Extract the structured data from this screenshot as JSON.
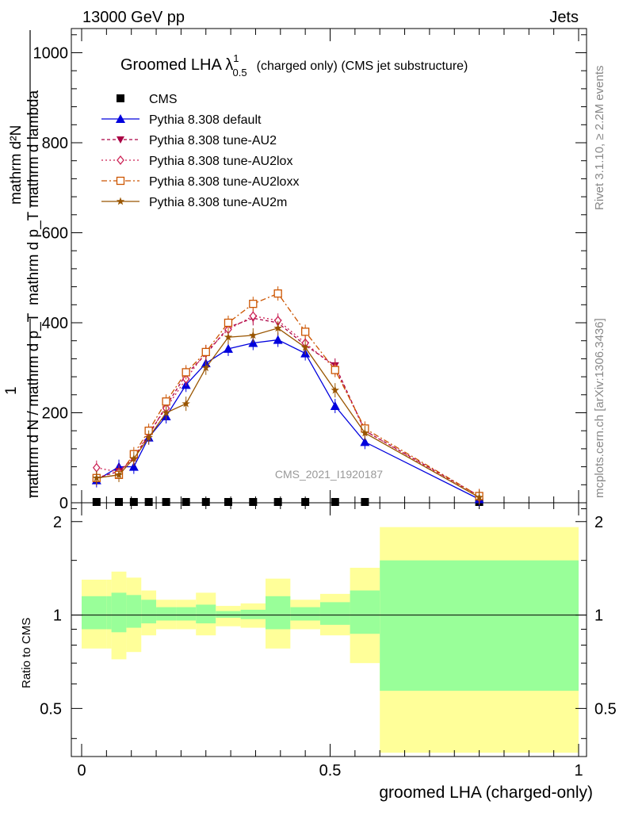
{
  "header": {
    "left": "13000 GeV pp",
    "right": "Jets"
  },
  "side_labels": {
    "rivet": "Rivet 3.1.10, ≥ 2.2M events",
    "mcplots": "mcplots.cern.ch [arXiv:1306.3436]"
  },
  "watermark": "CMS_2021_I1920187",
  "colors": {
    "band_outer": "#ffff99",
    "band_inner": "#99ff99",
    "default": "#0000dd",
    "au2": "#aa0044",
    "au2lox": "#cc2255",
    "au2loxx": "#cc5500",
    "au2m": "#995500"
  },
  "chart_data": [
    {
      "type": "line",
      "title": "Groomed LHA λ",
      "title_sup": "1",
      "title_sub": "0.5",
      "title_rest": "(charged only) (CMS jet substructure)",
      "xlabel": "groomed LHA (charged-only)",
      "ylabel_top": "mathrm d²N",
      "ylabel_top_alt": "mathrm d p_T mathrm d lambda",
      "ylabel_one": "1",
      "ylabel_bottom": "mathrm d N / mathrm d p_T",
      "xlim": [
        -0.02,
        1.0
      ],
      "ylim": [
        0,
        1060
      ],
      "yticks": [
        "0",
        "200",
        "400",
        "600",
        "800",
        "1000"
      ],
      "x": [
        0.03,
        0.075,
        0.105,
        0.135,
        0.17,
        0.21,
        0.25,
        0.295,
        0.345,
        0.395,
        0.45,
        0.51,
        0.57,
        0.8
      ],
      "series": [
        {
          "name": "CMS",
          "key": "cms",
          "marker": "square",
          "values": [
            0,
            0,
            0,
            0,
            0,
            0,
            0,
            0,
            0,
            0,
            0,
            0,
            0,
            0
          ]
        },
        {
          "name": "Pythia 8.308 default",
          "key": "default",
          "marker": "triangle",
          "values": [
            50,
            80,
            80,
            145,
            192,
            262,
            310,
            342,
            355,
            362,
            332,
            215,
            135,
            8
          ]
        },
        {
          "name": "Pythia 8.308 tune-AU2",
          "key": "au2",
          "marker": "triangle-down",
          "values": [
            55,
            70,
            100,
            150,
            215,
            285,
            330,
            390,
            410,
            400,
            350,
            305,
            160,
            15
          ]
        },
        {
          "name": "Pythia 8.308 tune-AU2lox",
          "key": "au2lox",
          "marker": "diamond",
          "values": [
            78,
            68,
            100,
            155,
            210,
            275,
            335,
            385,
            415,
            405,
            355,
            300,
            160,
            12
          ]
        },
        {
          "name": "Pythia 8.308 tune-AU2loxx",
          "key": "au2loxx",
          "marker": "open-square",
          "values": [
            55,
            62,
            108,
            160,
            225,
            290,
            335,
            400,
            442,
            465,
            380,
            295,
            165,
            15
          ]
        },
        {
          "name": "Pythia 8.308 tune-AU2m",
          "key": "au2m",
          "marker": "star",
          "values": [
            55,
            62,
            98,
            145,
            200,
            220,
            300,
            368,
            372,
            388,
            345,
            250,
            155,
            12
          ]
        }
      ]
    },
    {
      "type": "area",
      "ylabel": "Ratio to CMS",
      "xticks": [
        "0",
        "0.5",
        "1"
      ],
      "yticks": [
        "0.5",
        "1",
        "2"
      ],
      "ylim": [
        0.35,
        2.3
      ],
      "yscale": "log",
      "reference": 1,
      "bins": [
        0,
        0.05,
        0.06,
        0.09,
        0.12,
        0.15,
        0.19,
        0.23,
        0.27,
        0.32,
        0.37,
        0.42,
        0.48,
        0.54,
        0.6,
        1.0
      ],
      "inner_band": [
        [
          0.9,
          1.15
        ],
        [
          0.9,
          1.15
        ],
        [
          0.88,
          1.18
        ],
        [
          0.91,
          1.16
        ],
        [
          0.94,
          1.12
        ],
        [
          0.96,
          1.06
        ],
        [
          0.96,
          1.06
        ],
        [
          0.94,
          1.08
        ],
        [
          0.98,
          1.03
        ],
        [
          0.97,
          1.04
        ],
        [
          0.9,
          1.15
        ],
        [
          0.96,
          1.06
        ],
        [
          0.93,
          1.1
        ],
        [
          0.87,
          1.2
        ],
        [
          0.57,
          1.5
        ]
      ],
      "outer_band": [
        [
          0.78,
          1.3
        ],
        [
          0.78,
          1.3
        ],
        [
          0.72,
          1.38
        ],
        [
          0.76,
          1.32
        ],
        [
          0.86,
          1.2
        ],
        [
          0.9,
          1.12
        ],
        [
          0.9,
          1.12
        ],
        [
          0.86,
          1.18
        ],
        [
          0.92,
          1.07
        ],
        [
          0.91,
          1.09
        ],
        [
          0.78,
          1.31
        ],
        [
          0.9,
          1.12
        ],
        [
          0.86,
          1.17
        ],
        [
          0.7,
          1.42
        ],
        [
          0.36,
          1.92
        ]
      ]
    }
  ]
}
